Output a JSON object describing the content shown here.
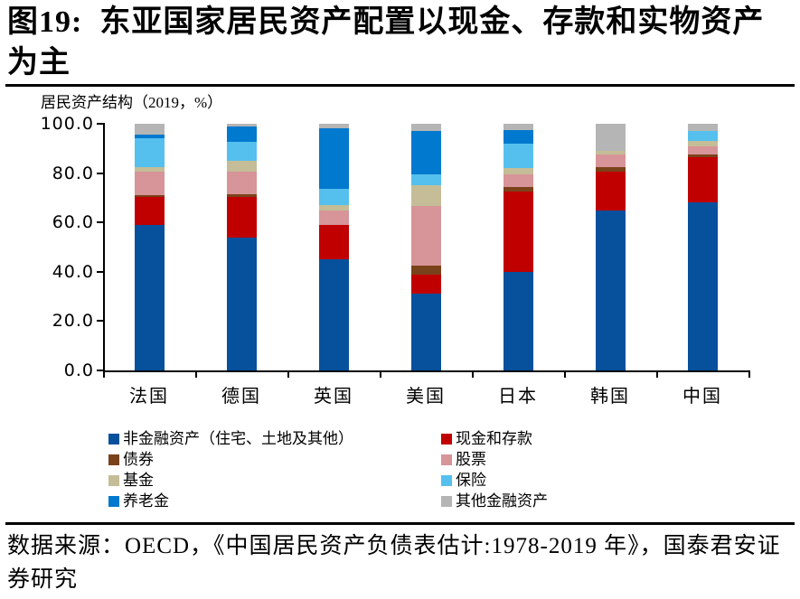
{
  "figure": {
    "number_title": "图19:  东亚国家居民资产配置以现金、存款和实物资产为主"
  },
  "chart_data": {
    "type": "bar",
    "stacked": true,
    "title": "居民资产结构（2019，%）",
    "xlabel": "",
    "ylabel": "",
    "ylim": [
      0,
      100
    ],
    "yticks": [
      "0.0",
      "20.0",
      "40.0",
      "60.0",
      "80.0",
      "100.0"
    ],
    "grid": false,
    "legend_position": "bottom",
    "categories": [
      "法国",
      "德国",
      "英国",
      "美国",
      "日本",
      "韩国",
      "中国"
    ],
    "series": [
      {
        "name": "非金融资产（住宅、土地及其他）",
        "color": "#07509C",
        "values": [
          59,
          54,
          45,
          31,
          40,
          65,
          68
        ]
      },
      {
        "name": "现金和存款",
        "color": "#C00000",
        "values": [
          11.5,
          16.5,
          14,
          8,
          32.5,
          15.5,
          18.5
        ]
      },
      {
        "name": "债券",
        "color": "#7A421A",
        "values": [
          0.5,
          1,
          0,
          3.5,
          2,
          2,
          1
        ]
      },
      {
        "name": "股票",
        "color": "#D79499",
        "values": [
          9.5,
          9,
          6,
          24,
          5,
          5,
          3.5
        ]
      },
      {
        "name": "基金",
        "color": "#C4BD97",
        "values": [
          2,
          4.5,
          2,
          8.5,
          2.5,
          1.5,
          2
        ]
      },
      {
        "name": "保险",
        "color": "#55C0EE",
        "values": [
          11.5,
          7.5,
          6.5,
          4.5,
          10,
          0,
          4
        ]
      },
      {
        "name": "养老金",
        "color": "#0079CE",
        "values": [
          1.5,
          6.5,
          24.5,
          17.5,
          5.5,
          0,
          0
        ]
      },
      {
        "name": "其他金融资产",
        "color": "#B5B5B5",
        "values": [
          4.5,
          1,
          2,
          3,
          2.5,
          11,
          3
        ]
      }
    ]
  },
  "source": {
    "text": "数据来源：OECD，《中国居民资产负债表估计:1978-2019 年》，国泰君安证券研究"
  }
}
